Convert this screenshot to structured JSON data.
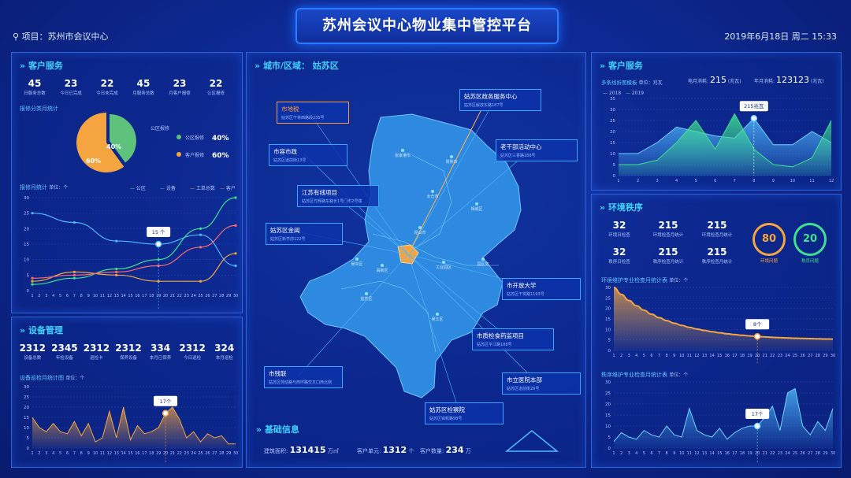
{
  "header": {
    "title": "苏州会议中心物业集中管控平台",
    "project_label": "项目：苏州市会议中心",
    "date": "2019年6月18日  周二  15:33"
  },
  "customer_left": {
    "title": "客户服务",
    "stats": [
      {
        "n": "45",
        "l": "日服务总数"
      },
      {
        "n": "23",
        "l": "今日已完成"
      },
      {
        "n": "22",
        "l": "今日未完成"
      },
      {
        "n": "45",
        "l": "月服务总数"
      },
      {
        "n": "23",
        "l": "月客户报修"
      },
      {
        "n": "22",
        "l": "公区报修"
      }
    ],
    "pie_title": "报修分类月统计",
    "pie": {
      "public_label": "公区报修",
      "public_pct": "40%",
      "customer_label": "客户报修",
      "customer_pct": "60%",
      "public_val": 40,
      "customer_val": 60
    },
    "line_title": "报修月统计",
    "unit": "单位：个",
    "legend": [
      "公区",
      "设备",
      "工单总数",
      "客户"
    ],
    "tooltip": "15 个",
    "x_ticks": [
      "1",
      "2",
      "3",
      "4",
      "5",
      "6",
      "7",
      "8",
      "9",
      "10",
      "11",
      "12",
      "13",
      "14",
      "15",
      "16",
      "17",
      "18",
      "19",
      "20",
      "21",
      "22",
      "23",
      "24",
      "25",
      "26",
      "27",
      "28",
      "29",
      "30"
    ],
    "y_ticks": [
      "0",
      "5",
      "10",
      "15",
      "20",
      "25",
      "30"
    ]
  },
  "device": {
    "title": "设备管理",
    "stats": [
      {
        "n": "2312",
        "l": "设备总数"
      },
      {
        "n": "2345",
        "l": "年检设备"
      },
      {
        "n": "2312",
        "l": "巡检卡"
      },
      {
        "n": "2312",
        "l": "保养设备"
      },
      {
        "n": "334",
        "l": "本月已保养"
      },
      {
        "n": "2312",
        "l": "今日巡检"
      },
      {
        "n": "324",
        "l": "本月巡检"
      }
    ],
    "chart_title": "设备巡检月统计图",
    "unit": "单位：个",
    "tooltip": "17个",
    "y_ticks": [
      "0",
      "5",
      "10",
      "15",
      "20",
      "25",
      "30"
    ]
  },
  "map": {
    "title": "城市/区域：  姑苏区",
    "tags": [
      {
        "t": "市地税",
        "a": "姑苏区干将西路段235号",
        "color": "#ff9a3c"
      },
      {
        "t": "姑苏区政务服务中心",
        "a": "姑苏区解放东路187号"
      },
      {
        "t": "老干部活动中心",
        "a": "姑苏区三香路188号"
      },
      {
        "t": "市容市政",
        "a": "姑苏区道前街13号"
      },
      {
        "t": "江苏有线项目",
        "a": "姑苏区竹辉路东路长1号门市2号楼"
      },
      {
        "t": "姑苏区金阊",
        "a": "姑苏区新学前122号"
      },
      {
        "t": "市开放大学",
        "a": "姑苏区干将路1193号"
      },
      {
        "t": "市质检食药监项目",
        "a": "姑苏区平江路188号"
      },
      {
        "t": "市残联",
        "a": "姑苏区劳动路与西环路交叉口西北侧"
      },
      {
        "t": "市立医院本部",
        "a": "姑苏区道前街26号"
      },
      {
        "t": "姑苏区检察院",
        "a": "姑苏区锦帆路98号"
      }
    ],
    "districts": [
      "张家港市",
      "常熟市",
      "太仓市",
      "相城区",
      "昆山市",
      "吴中区",
      "园区市",
      "工业园区",
      "高新区",
      "吴江区",
      "姑苏区"
    ],
    "base_title": "基础信息",
    "area_label": "建筑面积:",
    "area_value": "131415",
    "area_unit": "万㎡",
    "units_label": "客户单元:",
    "units_value": "1312",
    "units_unit": "个",
    "count_label": "客户数量:",
    "count_value": "234",
    "count_unit": "万"
  },
  "customer_right": {
    "title": "客户服务",
    "sub_title": "多条线折图模板",
    "unit": "单位：兆瓦",
    "month_label": "电月消耗:",
    "month_value": "215",
    "month_unit": "(兆瓦)",
    "year_label": "年月消耗:",
    "year_value": "123123",
    "year_unit": "(兆瓦)",
    "legend": [
      "2018",
      "2019"
    ],
    "tooltip": "215兆瓦",
    "x_ticks": [
      "1",
      "2",
      "3",
      "4",
      "5",
      "6",
      "7",
      "8",
      "9",
      "10",
      "11",
      "12"
    ],
    "y_ticks": [
      "0",
      "5",
      "10",
      "15",
      "20",
      "25",
      "30",
      "35"
    ]
  },
  "env": {
    "title": "环境秩序",
    "stats": [
      {
        "n": "32",
        "l": "环境日检查"
      },
      {
        "n": "215",
        "l": "环境检查月统计"
      },
      {
        "n": "215",
        "l": "环境检查月统计"
      },
      {
        "n": "32",
        "l": "秩序日检查"
      },
      {
        "n": "215",
        "l": "秩序检查月统计"
      },
      {
        "n": "215",
        "l": "秩序检查月统计"
      }
    ],
    "c1": {
      "n": "80",
      "l": "环境问题"
    },
    "c2": {
      "n": "20",
      "l": "秩序问题"
    },
    "chart1_title": "环境维护专业检查月统计表",
    "chart2_title": "秩序维护专业检查月统计表",
    "unit": "单位：个",
    "tooltip1": "8个",
    "tooltip2": "17个",
    "y_ticks": [
      "0",
      "5",
      "10",
      "15",
      "20",
      "25",
      "30"
    ]
  }
}
